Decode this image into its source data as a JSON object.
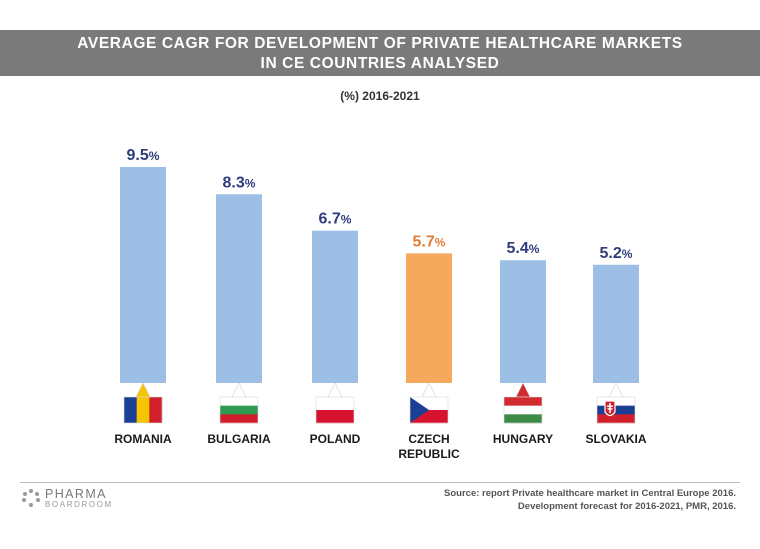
{
  "header": {
    "title_line1": "AVERAGE CAGR FOR DEVELOPMENT OF PRIVATE HEALTHCARE MARKETS",
    "title_line2": "IN CE COUNTRIES ANALYSED",
    "subtitle": "(%) 2016-2021"
  },
  "chart_data": {
    "type": "bar",
    "title": "AVERAGE CAGR FOR DEVELOPMENT OF PRIVATE HEALTHCARE MARKETS IN CE COUNTRIES ANALYSED",
    "subtitle": "(%) 2016-2021",
    "xlabel": "",
    "ylabel": "",
    "categories": [
      "ROMANIA",
      "BULGARIA",
      "POLAND",
      "CZECH REPUBLIC",
      "HUNGARY",
      "SLOVAKIA"
    ],
    "category_lines": [
      [
        "ROMANIA"
      ],
      [
        "BULGARIA"
      ],
      [
        "POLAND"
      ],
      [
        "CZECH",
        "REPUBLIC"
      ],
      [
        "HUNGARY"
      ],
      [
        "SLOVAKIA"
      ]
    ],
    "values": [
      9.5,
      8.3,
      6.7,
      5.7,
      5.4,
      5.2
    ],
    "value_labels": [
      "9.5",
      "8.3",
      "6.7",
      "5.7",
      "5.4",
      "5.2"
    ],
    "unit": "%",
    "ylim": [
      0,
      10
    ],
    "highlighted_category": "CZECH REPUBLIC",
    "colors": {
      "bar": "#9dbfe5",
      "bar_highlight": "#f5a95c",
      "label": "#2f3d7c",
      "label_highlight": "#e07d38"
    },
    "flags": [
      "romania-flag",
      "bulgaria-flag",
      "poland-flag",
      "czech-flag",
      "hungary-flag",
      "slovakia-flag"
    ]
  },
  "footer": {
    "brand_line1": "PHARMA",
    "brand_line2": "BOARDROOM",
    "source_line1": "Source: report Private healthcare market in Central Europe 2016.",
    "source_line2": "Development forecast for 2016-2021, PMR, 2016."
  }
}
